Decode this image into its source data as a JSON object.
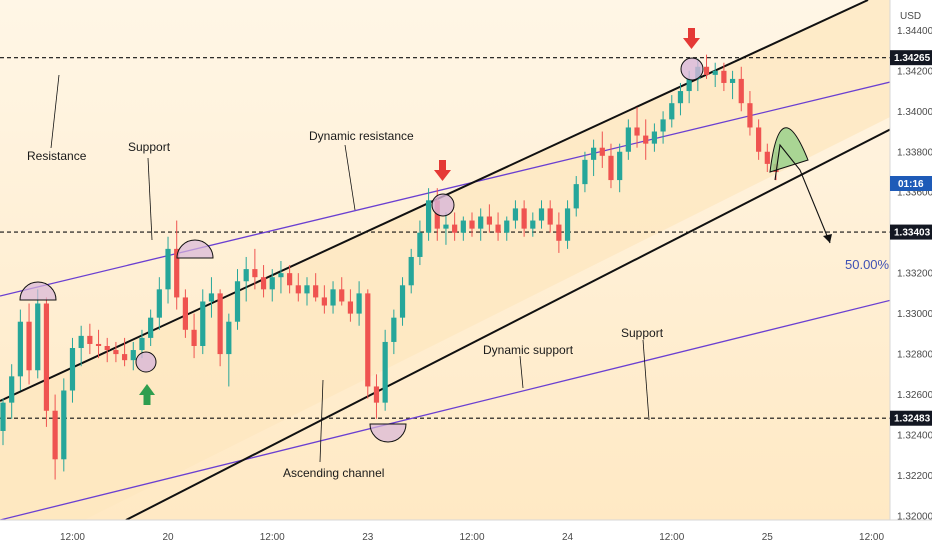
{
  "currency": "USD",
  "countdown": "01:16",
  "fib_label": "50.00%",
  "colors": {
    "channel_fill": "#fde7bf",
    "up": "#26a69a",
    "down": "#ef5350",
    "channel_line": "#111111",
    "dynamic_line": "#6a3fd1",
    "touch_circle": "#d8b6d8",
    "green_arc": "#9ad18b",
    "arrow_red": "#e53935",
    "arrow_green": "#2e9e4f",
    "price_tag": "#131722",
    "countdown_tag": "#1e5bb8"
  },
  "annotations": [
    {
      "key": "resistance",
      "text": "Resistance"
    },
    {
      "key": "support1",
      "text": "Support"
    },
    {
      "key": "dyn_res",
      "text": "Dynamic resistance"
    },
    {
      "key": "dyn_sup",
      "text": "Dynamic support"
    },
    {
      "key": "support2",
      "text": "Support"
    },
    {
      "key": "channel",
      "text": "Ascending channel"
    }
  ],
  "chart_data": {
    "type": "candlestick",
    "y_axis": {
      "ticks": [
        "1.34400",
        "1.34200",
        "1.34000",
        "1.33800",
        "1.33600",
        "1.33200",
        "1.33000",
        "1.32800",
        "1.32600",
        "1.32400",
        "1.32200",
        "1.32000"
      ],
      "tick_values": [
        1.344,
        1.342,
        1.34,
        1.338,
        1.336,
        1.332,
        1.33,
        1.328,
        1.326,
        1.324,
        1.322,
        1.32
      ],
      "range": [
        1.3198,
        1.3455
      ]
    },
    "x_axis": {
      "ticks": [
        "12:00",
        "20",
        "12:00",
        "23",
        "12:00",
        "24",
        "12:00",
        "25",
        "12:00"
      ],
      "tick_index": [
        8,
        19,
        31,
        42,
        54,
        65,
        77,
        88,
        100
      ]
    },
    "levels": [
      {
        "name": "resistance",
        "value": 1.34265,
        "label": "1.34265"
      },
      {
        "name": "mid",
        "value": 1.33403,
        "label": "1.33403"
      },
      {
        "name": "support",
        "value": 1.32483,
        "label": "1.32483"
      }
    ],
    "candles_ohlc": [
      [
        1.3242,
        1.3258,
        1.3235,
        1.3256
      ],
      [
        1.3256,
        1.3275,
        1.3248,
        1.3269
      ],
      [
        1.3269,
        1.3302,
        1.3262,
        1.3296
      ],
      [
        1.3296,
        1.3305,
        1.3265,
        1.3272
      ],
      [
        1.3272,
        1.3312,
        1.3268,
        1.3305
      ],
      [
        1.3305,
        1.3308,
        1.3244,
        1.3252
      ],
      [
        1.3252,
        1.326,
        1.3218,
        1.3228
      ],
      [
        1.3228,
        1.3268,
        1.3222,
        1.3262
      ],
      [
        1.3262,
        1.3288,
        1.3256,
        1.3283
      ],
      [
        1.3283,
        1.3294,
        1.3274,
        1.3289
      ],
      [
        1.3289,
        1.3295,
        1.328,
        1.3285
      ],
      [
        1.3285,
        1.3292,
        1.3278,
        1.3284
      ],
      [
        1.3284,
        1.3288,
        1.3276,
        1.3282
      ],
      [
        1.3282,
        1.3286,
        1.3276,
        1.328
      ],
      [
        1.328,
        1.3288,
        1.3274,
        1.3277
      ],
      [
        1.3277,
        1.3286,
        1.3272,
        1.3282
      ],
      [
        1.3282,
        1.3292,
        1.3278,
        1.3288
      ],
      [
        1.3288,
        1.3302,
        1.3284,
        1.3298
      ],
      [
        1.3298,
        1.3318,
        1.3292,
        1.3312
      ],
      [
        1.3312,
        1.3338,
        1.3305,
        1.3332
      ],
      [
        1.3332,
        1.3346,
        1.3302,
        1.3308
      ],
      [
        1.3308,
        1.3312,
        1.3288,
        1.3292
      ],
      [
        1.3292,
        1.33,
        1.3278,
        1.3284
      ],
      [
        1.3284,
        1.3312,
        1.328,
        1.3306
      ],
      [
        1.3306,
        1.3318,
        1.3298,
        1.331
      ],
      [
        1.331,
        1.3312,
        1.3274,
        1.328
      ],
      [
        1.328,
        1.33,
        1.3264,
        1.3296
      ],
      [
        1.3296,
        1.3322,
        1.3292,
        1.3316
      ],
      [
        1.3316,
        1.3328,
        1.3306,
        1.3322
      ],
      [
        1.3322,
        1.3332,
        1.3312,
        1.3318
      ],
      [
        1.3318,
        1.3324,
        1.3308,
        1.3312
      ],
      [
        1.3312,
        1.3322,
        1.3306,
        1.3318
      ],
      [
        1.3318,
        1.3326,
        1.331,
        1.332
      ],
      [
        1.332,
        1.3324,
        1.331,
        1.3314
      ],
      [
        1.3314,
        1.332,
        1.3306,
        1.331
      ],
      [
        1.331,
        1.3318,
        1.3304,
        1.3314
      ],
      [
        1.3314,
        1.332,
        1.3306,
        1.3308
      ],
      [
        1.3308,
        1.3314,
        1.33,
        1.3304
      ],
      [
        1.3304,
        1.3316,
        1.33,
        1.3312
      ],
      [
        1.3312,
        1.3318,
        1.3304,
        1.3306
      ],
      [
        1.3306,
        1.3312,
        1.3296,
        1.33
      ],
      [
        1.33,
        1.3316,
        1.3294,
        1.331
      ],
      [
        1.331,
        1.3312,
        1.3258,
        1.3264
      ],
      [
        1.3264,
        1.327,
        1.3248,
        1.3256
      ],
      [
        1.3256,
        1.3292,
        1.3252,
        1.3286
      ],
      [
        1.3286,
        1.3302,
        1.328,
        1.3298
      ],
      [
        1.3298,
        1.3318,
        1.3294,
        1.3314
      ],
      [
        1.3314,
        1.3332,
        1.331,
        1.3328
      ],
      [
        1.3328,
        1.3346,
        1.3324,
        1.334
      ],
      [
        1.334,
        1.3362,
        1.3336,
        1.3356
      ],
      [
        1.3356,
        1.3362,
        1.3336,
        1.3342
      ],
      [
        1.3342,
        1.335,
        1.3334,
        1.3344
      ],
      [
        1.3344,
        1.335,
        1.3336,
        1.334
      ],
      [
        1.334,
        1.3348,
        1.3336,
        1.3346
      ],
      [
        1.3346,
        1.335,
        1.3338,
        1.3342
      ],
      [
        1.3342,
        1.3352,
        1.3336,
        1.3348
      ],
      [
        1.3348,
        1.3354,
        1.334,
        1.3344
      ],
      [
        1.3344,
        1.335,
        1.3336,
        1.334
      ],
      [
        1.334,
        1.3348,
        1.3336,
        1.3346
      ],
      [
        1.3346,
        1.3356,
        1.3342,
        1.3352
      ],
      [
        1.3352,
        1.3356,
        1.3338,
        1.3342
      ],
      [
        1.3342,
        1.335,
        1.3338,
        1.3346
      ],
      [
        1.3346,
        1.3356,
        1.3342,
        1.3352
      ],
      [
        1.3352,
        1.3356,
        1.334,
        1.3344
      ],
      [
        1.3344,
        1.335,
        1.333,
        1.3336
      ],
      [
        1.3336,
        1.3356,
        1.3332,
        1.3352
      ],
      [
        1.3352,
        1.3368,
        1.3348,
        1.3364
      ],
      [
        1.3364,
        1.338,
        1.336,
        1.3376
      ],
      [
        1.3376,
        1.3386,
        1.3368,
        1.3382
      ],
      [
        1.3382,
        1.339,
        1.3372,
        1.3378
      ],
      [
        1.3378,
        1.3384,
        1.3362,
        1.3366
      ],
      [
        1.3366,
        1.3384,
        1.336,
        1.338
      ],
      [
        1.338,
        1.3396,
        1.3376,
        1.3392
      ],
      [
        1.3392,
        1.3402,
        1.3382,
        1.3388
      ],
      [
        1.3388,
        1.3396,
        1.3376,
        1.3384
      ],
      [
        1.3384,
        1.3394,
        1.338,
        1.339
      ],
      [
        1.339,
        1.34,
        1.3384,
        1.3396
      ],
      [
        1.3396,
        1.3408,
        1.3392,
        1.3404
      ],
      [
        1.3404,
        1.3414,
        1.3398,
        1.341
      ],
      [
        1.341,
        1.342,
        1.3404,
        1.3416
      ],
      [
        1.3416,
        1.3426,
        1.341,
        1.3422
      ],
      [
        1.3422,
        1.3428,
        1.3416,
        1.3418
      ],
      [
        1.3418,
        1.3424,
        1.3412,
        1.342
      ],
      [
        1.342,
        1.3424,
        1.341,
        1.3414
      ],
      [
        1.3414,
        1.342,
        1.3406,
        1.3416
      ],
      [
        1.3416,
        1.3422,
        1.34,
        1.3404
      ],
      [
        1.3404,
        1.341,
        1.3388,
        1.3392
      ],
      [
        1.3392,
        1.3396,
        1.3376,
        1.338
      ],
      [
        1.338,
        1.3384,
        1.337,
        1.3374
      ],
      [
        1.3374,
        1.338,
        1.3366,
        1.337
      ]
    ]
  }
}
